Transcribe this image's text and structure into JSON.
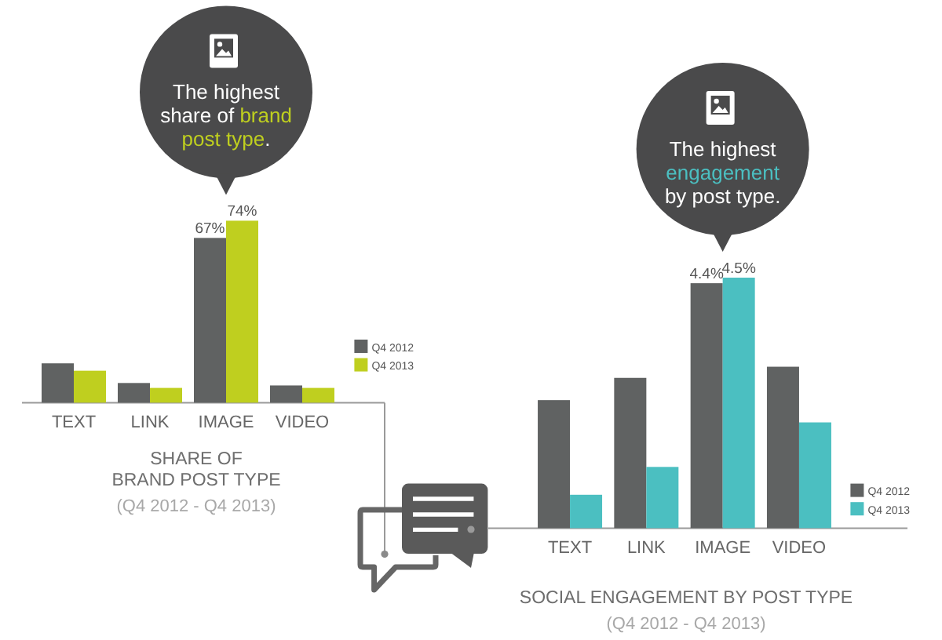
{
  "chart_data": [
    {
      "type": "bar",
      "title": "SHARE OF BRAND POST TYPE",
      "subtitle": "(Q4 2012 - Q4 2013)",
      "annotations": [
        "The highest share of brand post type."
      ],
      "categories": [
        "TEXT",
        "LINK",
        "IMAGE",
        "VIDEO"
      ],
      "series": [
        {
          "name": "Q4 2012",
          "color": "#606262",
          "values": [
            16,
            8,
            67,
            7
          ],
          "value_labels": [
            null,
            null,
            "67%",
            null
          ]
        },
        {
          "name": "Q4 2013",
          "color": "#bfcf1f",
          "values": [
            13,
            6,
            74,
            6
          ],
          "value_labels": [
            null,
            null,
            "74%",
            null
          ]
        }
      ],
      "legend": "bottom right"
    },
    {
      "type": "bar",
      "title": "SOCIAL ENGAGEMENT BY POST TYPE",
      "subtitle": "(Q4 2012 - Q4 2013)",
      "annotations": [
        "The highest engagement by post type."
      ],
      "categories": [
        "TEXT",
        "LINK",
        "IMAGE",
        "VIDEO"
      ],
      "series": [
        {
          "name": "Q4 2012",
          "color": "#606262",
          "values": [
            2.3,
            2.7,
            4.4,
            2.9
          ],
          "value_labels": [
            null,
            null,
            "4.4%",
            null
          ]
        },
        {
          "name": "Q4 2013",
          "color": "#4bbfc1",
          "values": [
            0.6,
            1.1,
            4.5,
            1.9
          ],
          "value_labels": [
            null,
            null,
            "4.5%",
            null
          ]
        }
      ],
      "legend": "bottom right"
    }
  ]
}
